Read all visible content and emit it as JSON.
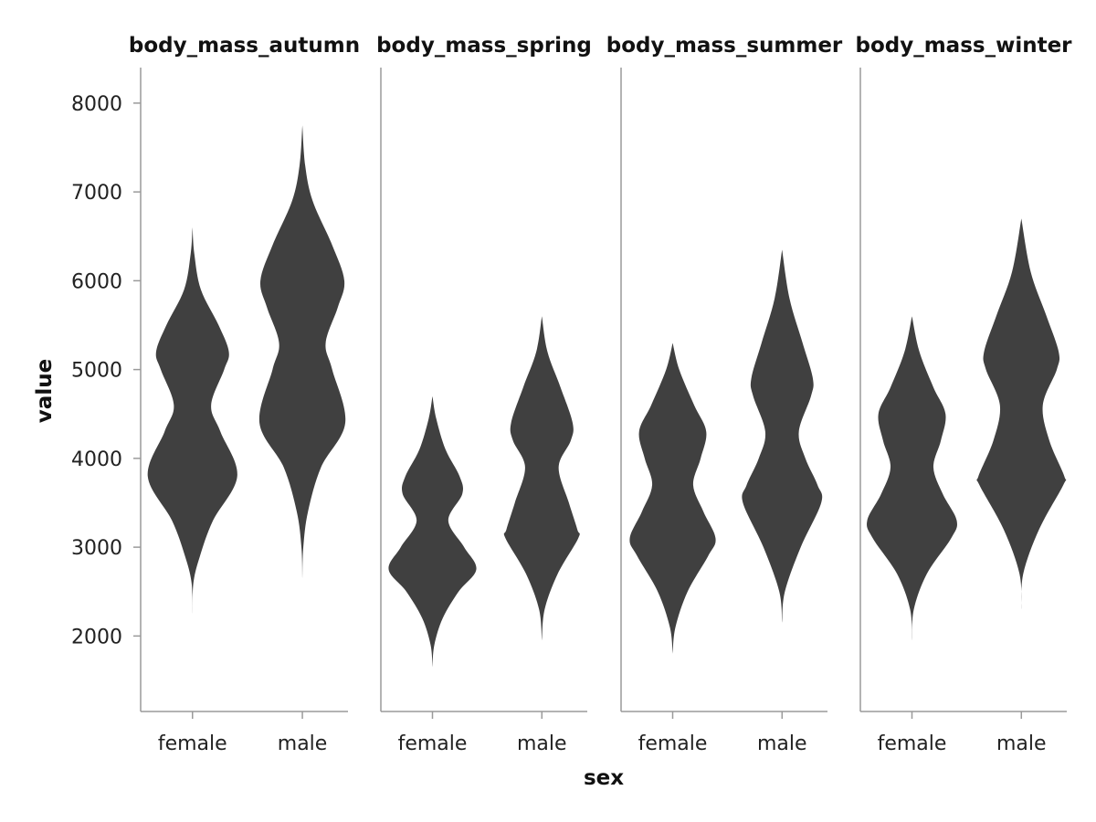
{
  "chart_data": {
    "type": "violin",
    "xlabel": "sex",
    "ylabel": "value",
    "ylim": [
      1150,
      8400
    ],
    "yticks": [
      2000,
      3000,
      4000,
      5000,
      6000,
      7000,
      8000
    ],
    "categories": [
      "female",
      "male"
    ],
    "colors": {
      "violin": "#404040",
      "axis": "#9a9a9a"
    },
    "facets": [
      {
        "title": "body_mass_autumn",
        "violins": [
          {
            "category": "female",
            "min": 2250,
            "max": 6600,
            "density": [
              [
                2250,
                0
              ],
              [
                2600,
                1
              ],
              [
                2900,
                8
              ],
              [
                3300,
                22
              ],
              [
                3800,
                48
              ],
              [
                4300,
                30
              ],
              [
                4600,
                20
              ],
              [
                5000,
                34
              ],
              [
                5200,
                39
              ],
              [
                5500,
                28
              ],
              [
                5900,
                9
              ],
              [
                6300,
                2
              ],
              [
                6600,
                0
              ]
            ]
          },
          {
            "category": "male",
            "min": 2650,
            "max": 7750,
            "density": [
              [
                2650,
                0
              ],
              [
                3000,
                1
              ],
              [
                3400,
                6
              ],
              [
                3900,
                20
              ],
              [
                4400,
                46
              ],
              [
                5000,
                32
              ],
              [
                5300,
                25
              ],
              [
                5700,
                38
              ],
              [
                6000,
                45
              ],
              [
                6400,
                32
              ],
              [
                6900,
                11
              ],
              [
                7300,
                3
              ],
              [
                7750,
                0
              ]
            ]
          }
        ]
      },
      {
        "title": "body_mass_spring",
        "violins": [
          {
            "category": "female",
            "min": 1650,
            "max": 4700,
            "density": [
              [
                1650,
                0
              ],
              [
                1900,
                2
              ],
              [
                2200,
                11
              ],
              [
                2500,
                28
              ],
              [
                2750,
                47
              ],
              [
                3000,
                34
              ],
              [
                3300,
                17
              ],
              [
                3600,
                32
              ],
              [
                3800,
                29
              ],
              [
                4100,
                14
              ],
              [
                4450,
                4
              ],
              [
                4700,
                0
              ]
            ]
          },
          {
            "category": "male",
            "min": 1950,
            "max": 5600,
            "density": [
              [
                1950,
                0
              ],
              [
                2300,
                3
              ],
              [
                2700,
                17
              ],
              [
                3100,
                39
              ],
              [
                3200,
                38
              ],
              [
                3500,
                29
              ],
              [
                3900,
                18
              ],
              [
                4200,
                31
              ],
              [
                4400,
                33
              ],
              [
                4800,
                20
              ],
              [
                5200,
                6
              ],
              [
                5600,
                0
              ]
            ]
          }
        ]
      },
      {
        "title": "body_mass_summer",
        "violins": [
          {
            "category": "female",
            "min": 1800,
            "max": 5300,
            "density": [
              [
                1800,
                0
              ],
              [
                2100,
                3
              ],
              [
                2500,
                16
              ],
              [
                2900,
                38
              ],
              [
                3100,
                46
              ],
              [
                3400,
                33
              ],
              [
                3700,
                22
              ],
              [
                4000,
                30
              ],
              [
                4300,
                36
              ],
              [
                4600,
                23
              ],
              [
                5000,
                7
              ],
              [
                5300,
                0
              ]
            ]
          },
          {
            "category": "male",
            "min": 2150,
            "max": 6350,
            "density": [
              [
                2150,
                0
              ],
              [
                2500,
                3
              ],
              [
                3000,
                20
              ],
              [
                3500,
                42
              ],
              [
                3700,
                38
              ],
              [
                4000,
                25
              ],
              [
                4300,
                18
              ],
              [
                4700,
                31
              ],
              [
                4900,
                33
              ],
              [
                5300,
                22
              ],
              [
                5800,
                8
              ],
              [
                6350,
                0
              ]
            ]
          }
        ]
      },
      {
        "title": "body_mass_winter",
        "violins": [
          {
            "category": "female",
            "min": 1950,
            "max": 5600,
            "density": [
              [
                1950,
                0
              ],
              [
                2300,
                2
              ],
              [
                2700,
                16
              ],
              [
                3100,
                42
              ],
              [
                3300,
                48
              ],
              [
                3600,
                33
              ],
              [
                3900,
                23
              ],
              [
                4200,
                31
              ],
              [
                4500,
                36
              ],
              [
                4800,
                23
              ],
              [
                5200,
                8
              ],
              [
                5600,
                0
              ]
            ]
          },
          {
            "category": "male",
            "min": 2300,
            "max": 6700,
            "density": [
              [
                2300,
                0
              ],
              [
                2700,
                2
              ],
              [
                3200,
                19
              ],
              [
                3700,
                45
              ],
              [
                3800,
                46
              ],
              [
                4200,
                30
              ],
              [
                4600,
                23
              ],
              [
                5000,
                38
              ],
              [
                5200,
                40
              ],
              [
                5600,
                27
              ],
              [
                6100,
                10
              ],
              [
                6700,
                0
              ]
            ]
          }
        ]
      }
    ]
  }
}
